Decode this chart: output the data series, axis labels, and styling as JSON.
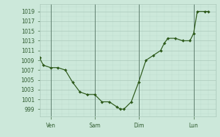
{
  "x_values": [
    0,
    0.5,
    1.5,
    2.5,
    3.5,
    4.5,
    5.5,
    6.5,
    7.5,
    8.5,
    9.5,
    10.5,
    11.0,
    11.5,
    12.5,
    13.5,
    14.5,
    15.5,
    16.5,
    17.0,
    17.5,
    18.5,
    19.5,
    20.5,
    21.0,
    21.5,
    22.5,
    23.0
  ],
  "y_values": [
    1009.5,
    1008.0,
    1007.5,
    1007.5,
    1007.0,
    1004.5,
    1002.5,
    1002.0,
    1002.0,
    1000.5,
    1000.5,
    999.5,
    999.0,
    999.0,
    1000.5,
    1004.5,
    1009.0,
    1010.0,
    1011.0,
    1012.5,
    1013.5,
    1013.5,
    1013.0,
    1013.0,
    1014.5,
    1019.0,
    1019.0,
    1019.0
  ],
  "x_tick_positions": [
    1.5,
    7.5,
    13.5,
    21.0
  ],
  "x_tick_labels": [
    "Ven",
    "Sam",
    "Dim",
    "Lun"
  ],
  "x_vline_positions": [
    1.5,
    7.5,
    13.5,
    21.0
  ],
  "x_min": 0,
  "x_max": 24,
  "y_min": 997.5,
  "y_max": 1020.5,
  "y_tick_min": 999,
  "y_tick_max": 1019,
  "y_tick_step": 2,
  "line_color": "#2d5a1b",
  "marker_color": "#2d5a1b",
  "bg_color": "#cce8da",
  "grid_color_major": "#aac8ba",
  "grid_color_minor": "#bbdacc",
  "vline_color": "#5a7a6a",
  "font_color": "#2d5a2d"
}
